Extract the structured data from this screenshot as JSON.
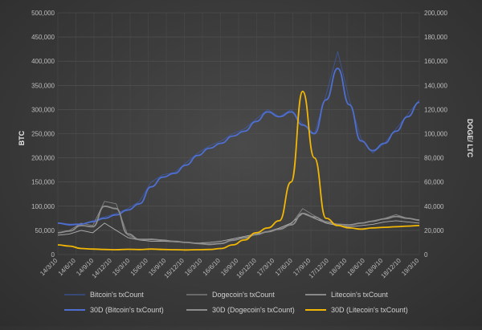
{
  "chart_data": {
    "type": "line",
    "ylabel_left": "BTC",
    "ylabel_right": "DOGE/ LTC",
    "ylim_left": [
      0,
      500000
    ],
    "ylim_right": [
      0,
      200000
    ],
    "yticks_left": [
      "0",
      "50,000",
      "100,000",
      "150,000",
      "200,000",
      "250,000",
      "300,000",
      "350,000",
      "400,000",
      "450,000",
      "500,000"
    ],
    "yticks_right": [
      "0",
      "20,000",
      "40,000",
      "60,000",
      "80,000",
      "100,000",
      "120,000",
      "140,000",
      "160,000",
      "180,000",
      "200,000"
    ],
    "xticks": [
      "14/3/10",
      "14/6/10",
      "14/9/10",
      "14/12/10",
      "15/3/10",
      "15/6/10",
      "15/9/10",
      "15/12/10",
      "16/3/10",
      "16/6/10",
      "16/9/10",
      "16/12/10",
      "17/3/10",
      "17/6/10",
      "17/9/10",
      "17/12/10",
      "18/3/10",
      "18/6/10",
      "18/9/10",
      "18/12/10",
      "19/3/10"
    ],
    "grid": true,
    "legend_position": "bottom",
    "series": [
      {
        "name": "Bitcoin's txCount",
        "axis": "left",
        "style": "raw",
        "color": "#3d5db8",
        "values": [
          65000,
          60000,
          62000,
          70000,
          78000,
          85000,
          95000,
          110000,
          150000,
          165000,
          170000,
          190000,
          210000,
          225000,
          235000,
          250000,
          260000,
          280000,
          300000,
          285000,
          300000,
          270000,
          250000,
          330000,
          420000,
          320000,
          240000,
          210000,
          230000,
          260000,
          290000,
          320000
        ]
      },
      {
        "name": "Dogecoin's txCount",
        "axis": "right",
        "style": "raw",
        "color": "#9a9a9a",
        "values": [
          18000,
          20000,
          26000,
          24000,
          44000,
          42000,
          16000,
          12000,
          13000,
          12000,
          11000,
          10000,
          9000,
          8000,
          9000,
          12000,
          14000,
          17000,
          19000,
          21000,
          25000,
          38000,
          32000,
          27000,
          25000,
          24000,
          26000,
          28000,
          30000,
          33000,
          30000,
          28000
        ]
      },
      {
        "name": "Litecoin's txCount",
        "axis": "right",
        "style": "raw",
        "color": "#d8d8d8",
        "values": [
          16000,
          17000,
          20000,
          18000,
          26000,
          20000,
          14000,
          12000,
          11000,
          11000,
          10500,
          10000,
          9500,
          10000,
          11000,
          13000,
          15000,
          17000,
          19000,
          22000,
          26000,
          34000,
          30000,
          26000,
          24000,
          23000,
          24000,
          25000,
          27000,
          28000,
          27000,
          26000
        ]
      },
      {
        "name": "30D (Bitcoin's txCount)",
        "axis": "left",
        "style": "smooth",
        "color": "#4f6fd0",
        "values": [
          65000,
          62000,
          63000,
          68000,
          75000,
          82000,
          92000,
          105000,
          140000,
          160000,
          168000,
          185000,
          205000,
          220000,
          230000,
          245000,
          255000,
          275000,
          295000,
          285000,
          295000,
          268000,
          250000,
          320000,
          385000,
          310000,
          235000,
          215000,
          230000,
          255000,
          285000,
          315000
        ]
      },
      {
        "name": "30D (Dogecoin's txCount)",
        "axis": "right",
        "style": "smooth",
        "color": "#8c8c8c",
        "values": [
          18000,
          19500,
          24000,
          23000,
          40000,
          38000,
          17000,
          12500,
          12500,
          11800,
          10800,
          10000,
          9200,
          8500,
          9200,
          11800,
          13800,
          16500,
          18800,
          21000,
          24500,
          34000,
          31000,
          27000,
          25000,
          24500,
          26000,
          27500,
          29500,
          31500,
          30000,
          28500
        ]
      },
      {
        "name": "30D (Litecoin's txCount)",
        "axis": "right",
        "style": "smooth",
        "color": "#f2b705",
        "values": [
          8000,
          7000,
          5000,
          4500,
          4200,
          4000,
          4300,
          4100,
          4500,
          4200,
          4000,
          3800,
          4000,
          4200,
          5000,
          8000,
          12000,
          18000,
          22000,
          28000,
          60000,
          135000,
          80000,
          30000,
          24000,
          22000,
          21000,
          22000,
          22500,
          23000,
          23500,
          24000
        ]
      }
    ]
  }
}
